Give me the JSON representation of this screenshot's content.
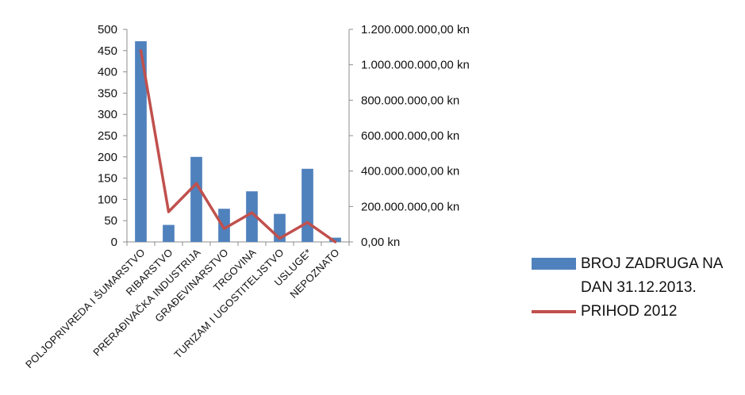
{
  "chart_data": {
    "type": "bar",
    "categories": [
      "POLJOPRIVREDA I ŠUMARSTVO",
      "RIBARSTVO",
      "PRERAĐIVAČKA INDUSTRIJA",
      "GRAĐEVINARSTVO",
      "TRGOVINA",
      "TURIZAM I UGOSTITELJSTVO",
      "USLUGE*",
      "NEPOZNATO"
    ],
    "series": [
      {
        "name": "BROJ ZADRUGA NA DAN 31.12.2013.",
        "type": "bar",
        "axis": "left",
        "color": "#4f81bd",
        "values": [
          472,
          40,
          200,
          78,
          119,
          66,
          172,
          10
        ]
      },
      {
        "name": "PRIHOD 2012",
        "type": "line",
        "axis": "right",
        "color": "#c0504d",
        "values": [
          1080000000,
          170000000,
          330000000,
          75000000,
          165000000,
          20000000,
          110000000,
          0
        ]
      }
    ],
    "ylim_left": [
      0,
      500
    ],
    "yticks_left": [
      "500",
      "450",
      "400",
      "350",
      "300",
      "250",
      "200",
      "150",
      "100",
      "50",
      "0"
    ],
    "ylim_right": [
      0,
      1200000000
    ],
    "yticks_right": [
      "1.200.000.000,00 kn",
      "1.000.000.000,00 kn",
      "800.000.000,00 kn",
      "600.000.000,00 kn",
      "400.000.000,00 kn",
      "200.000.000,00 kn",
      "0,00 kn"
    ],
    "legend": {
      "position": "bottom-right",
      "bar_label_line1": "BROJ ZADRUGA NA",
      "bar_label_line2": "DAN 31.12.2013.",
      "line_label": "PRIHOD 2012"
    },
    "grid": false
  }
}
